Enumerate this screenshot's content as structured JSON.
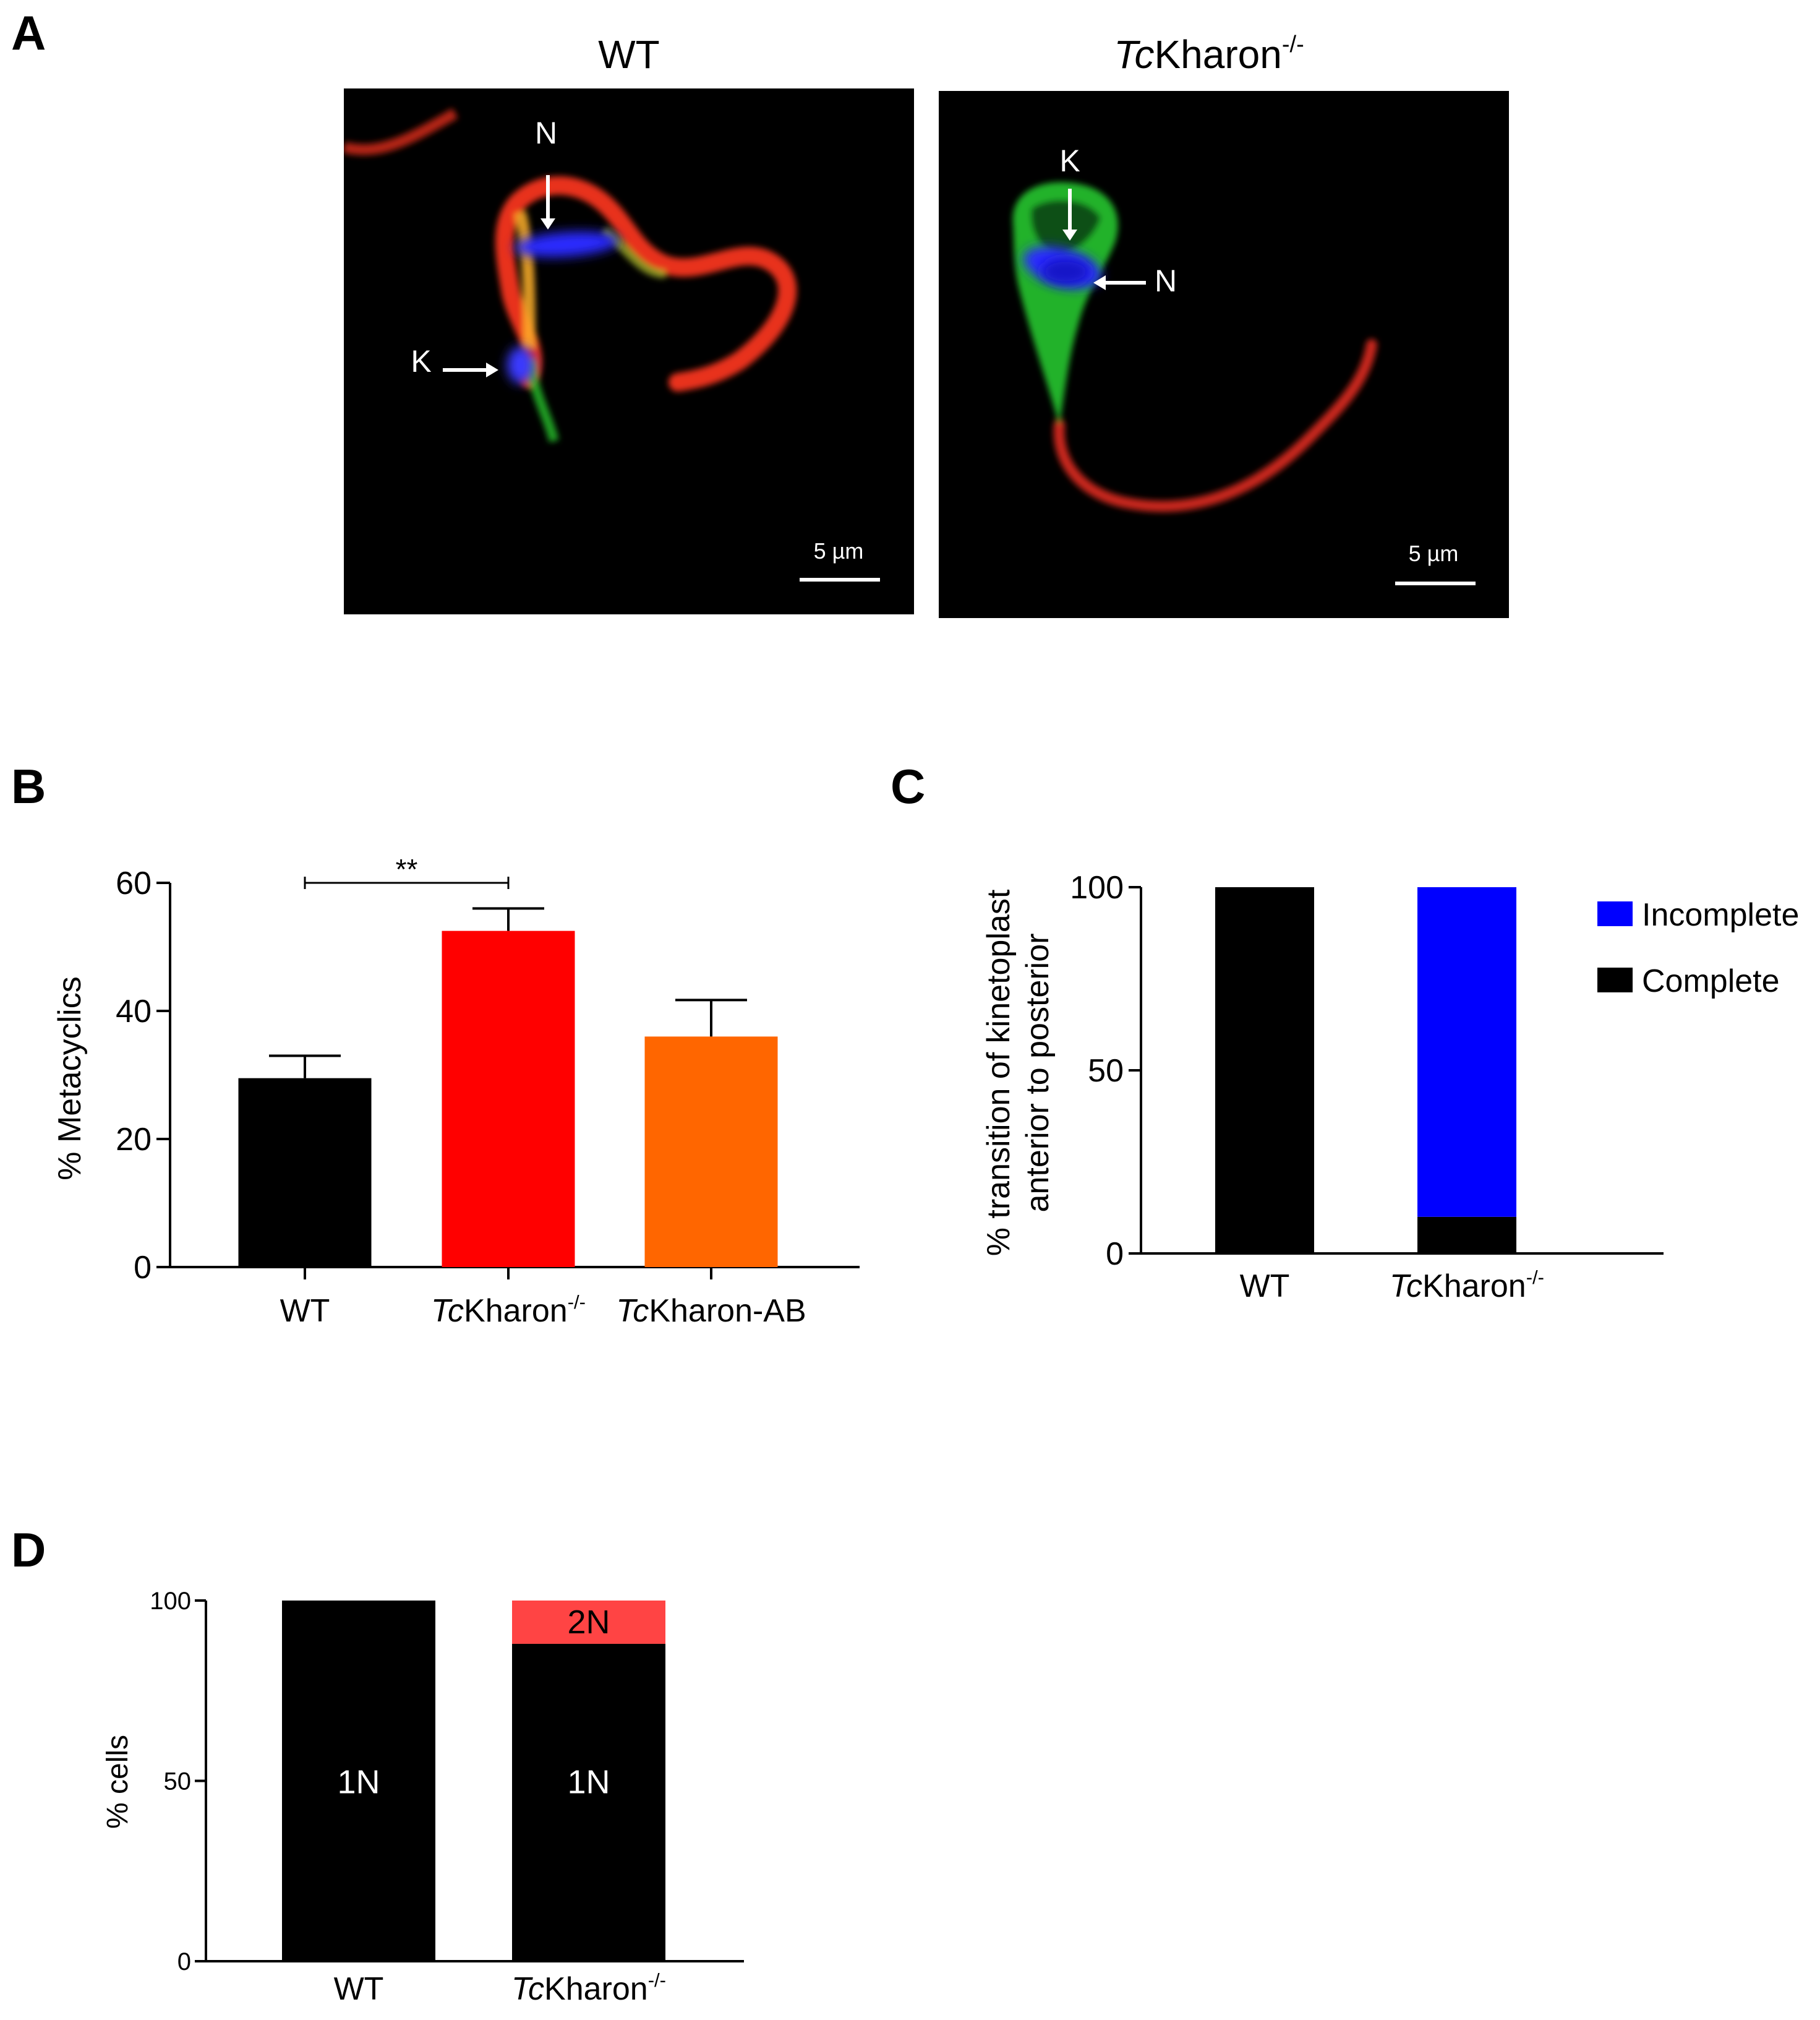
{
  "panel_letters": {
    "a": "A",
    "b": "B",
    "c": "C",
    "d": "D"
  },
  "panel_a": {
    "left_title": "WT",
    "right_title_italic": "Tc",
    "right_title_rest": "Kharon",
    "right_title_sup": "-/-",
    "left_labels": {
      "n": "N",
      "k": "K"
    },
    "right_labels": {
      "k": "K",
      "n": "N"
    },
    "scale_bar_label": "5 µm",
    "colors": {
      "background": "#000000",
      "flagellum": "#e8321e",
      "body": "#27c42a",
      "nucleus": "#2a2aff",
      "label": "#ffffff"
    }
  },
  "chart_data": [
    {
      "panel": "B",
      "type": "bar",
      "categories": [
        "WT",
        "TcKharon-/-",
        "TcKharon-AB"
      ],
      "category_labels": [
        {
          "italic": "",
          "rest": "WT",
          "sup": ""
        },
        {
          "italic": "Tc",
          "rest": "Kharon",
          "sup": "-/-"
        },
        {
          "italic": "Tc",
          "rest": "Kharon-AB",
          "sup": ""
        }
      ],
      "values": [
        29.5,
        52.5,
        36
      ],
      "errors": [
        3.5,
        3.5,
        5.7
      ],
      "colors": [
        "#000000",
        "#ff0000",
        "#ff6600"
      ],
      "ylabel": "% Metacyclics",
      "ylim": [
        0,
        60
      ],
      "yticks": [
        0,
        20,
        40,
        60
      ],
      "significance": {
        "from": 0,
        "to": 1,
        "label": "**"
      }
    },
    {
      "panel": "C",
      "type": "bar",
      "stacked": true,
      "categories": [
        "WT",
        "TcKharon-/-"
      ],
      "category_labels": [
        {
          "italic": "",
          "rest": "WT",
          "sup": ""
        },
        {
          "italic": "Tc",
          "rest": "Kharon",
          "sup": "-/-"
        }
      ],
      "series": [
        {
          "name": "Complete",
          "values": [
            100,
            10
          ],
          "color": "#000000"
        },
        {
          "name": "Incomplete",
          "values": [
            0,
            90
          ],
          "color": "#0000ff"
        }
      ],
      "legend": [
        "Incomplete",
        "Complete"
      ],
      "ylabel_line1": "% transition of  kinetoplast",
      "ylabel_line2": "anterior to posterior",
      "ylim": [
        0,
        100
      ],
      "yticks": [
        0,
        50,
        100
      ]
    },
    {
      "panel": "D",
      "type": "bar",
      "stacked": true,
      "categories": [
        "WT",
        "TcKharon-/-"
      ],
      "category_labels": [
        {
          "italic": "",
          "rest": "WT",
          "sup": ""
        },
        {
          "italic": "Tc",
          "rest": "Kharon",
          "sup": "-/-"
        }
      ],
      "series": [
        {
          "name": "1N",
          "values": [
            100,
            88
          ],
          "color": "#000000",
          "label_color": "#ffffff"
        },
        {
          "name": "2N",
          "values": [
            0,
            12
          ],
          "color": "#ff4444",
          "label_color": "#000000"
        }
      ],
      "segment_labels": [
        [
          "1N"
        ],
        [
          "1N",
          "2N"
        ]
      ],
      "ylabel": "% cells",
      "ylim": [
        0,
        100
      ],
      "yticks": [
        0,
        50,
        100
      ]
    }
  ]
}
